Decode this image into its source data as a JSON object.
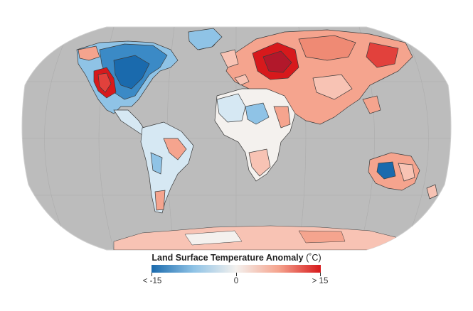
{
  "legend": {
    "title": "Land Surface Temperature Anomaly",
    "unit": "(˚C)",
    "min_label": "< -15",
    "mid_label": "0",
    "max_label": "> 15",
    "min_value": -15,
    "max_value": 15,
    "colors": {
      "cold": "#1a6aad",
      "cool": "#8fc3e6",
      "neutral": "#f4f1ee",
      "warm": "#f5a48e",
      "hot": "#d7191c"
    }
  },
  "map": {
    "projection": "robinson",
    "graticule": true,
    "no_data_color": "#bcbcbc",
    "outline_color": "#cfcfcf",
    "border_color": "#3a3a3a"
  }
}
